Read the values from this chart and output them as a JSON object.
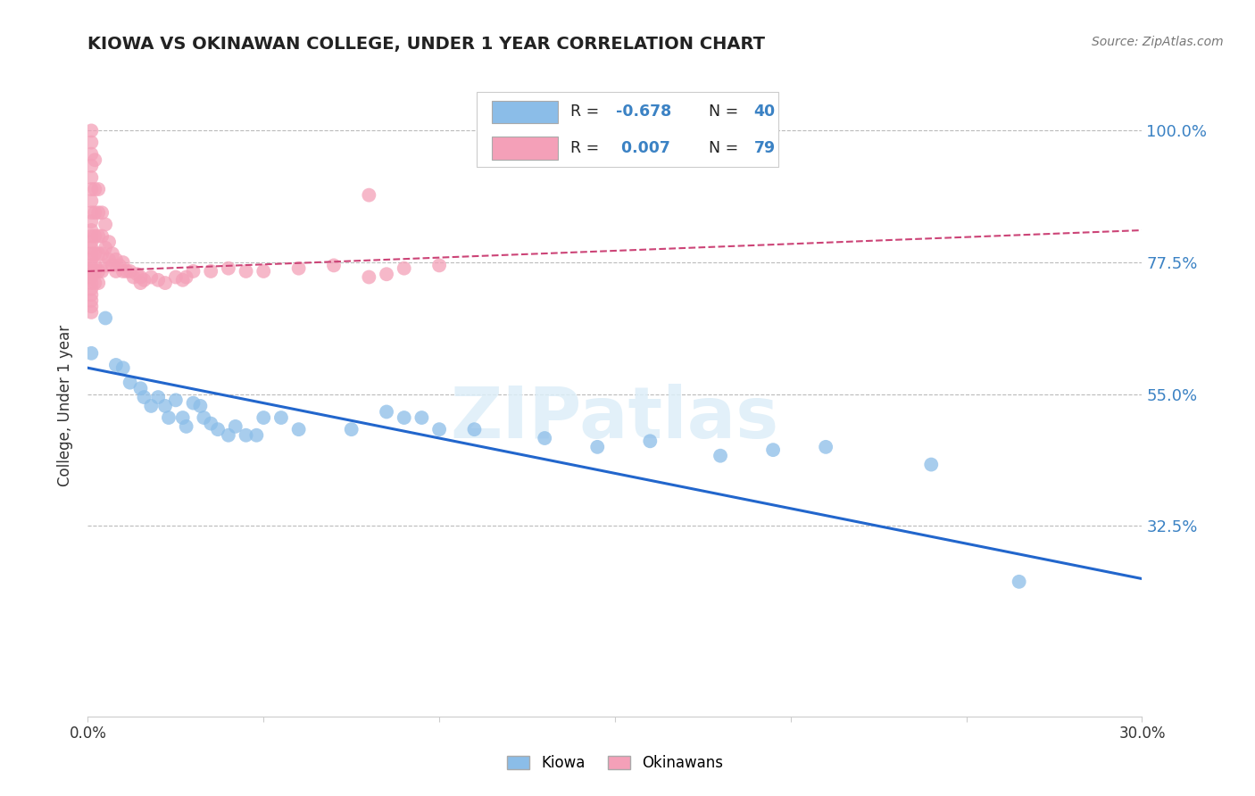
{
  "title": "KIOWA VS OKINAWAN COLLEGE, UNDER 1 YEAR CORRELATION CHART",
  "source": "Source: ZipAtlas.com",
  "ylabel": "College, Under 1 year",
  "xlim": [
    0.0,
    0.3
  ],
  "ylim": [
    0.0,
    1.05
  ],
  "yticks": [
    0.325,
    0.55,
    0.775,
    1.0
  ],
  "ytick_labels": [
    "32.5%",
    "55.0%",
    "77.5%",
    "100.0%"
  ],
  "blue_color": "#8BBDE8",
  "pink_color": "#F4A0B8",
  "blue_line_color": "#2266CC",
  "pink_line_color": "#CC4477",
  "watermark_color": "#DDEEFF",
  "blue_scatter": [
    [
      0.001,
      0.62
    ],
    [
      0.005,
      0.68
    ],
    [
      0.008,
      0.6
    ],
    [
      0.01,
      0.595
    ],
    [
      0.012,
      0.57
    ],
    [
      0.015,
      0.56
    ],
    [
      0.016,
      0.545
    ],
    [
      0.018,
      0.53
    ],
    [
      0.02,
      0.545
    ],
    [
      0.022,
      0.53
    ],
    [
      0.023,
      0.51
    ],
    [
      0.025,
      0.54
    ],
    [
      0.027,
      0.51
    ],
    [
      0.028,
      0.495
    ],
    [
      0.03,
      0.535
    ],
    [
      0.032,
      0.53
    ],
    [
      0.033,
      0.51
    ],
    [
      0.035,
      0.5
    ],
    [
      0.037,
      0.49
    ],
    [
      0.04,
      0.48
    ],
    [
      0.042,
      0.495
    ],
    [
      0.045,
      0.48
    ],
    [
      0.048,
      0.48
    ],
    [
      0.05,
      0.51
    ],
    [
      0.055,
      0.51
    ],
    [
      0.06,
      0.49
    ],
    [
      0.075,
      0.49
    ],
    [
      0.085,
      0.52
    ],
    [
      0.09,
      0.51
    ],
    [
      0.095,
      0.51
    ],
    [
      0.1,
      0.49
    ],
    [
      0.11,
      0.49
    ],
    [
      0.13,
      0.475
    ],
    [
      0.145,
      0.46
    ],
    [
      0.16,
      0.47
    ],
    [
      0.18,
      0.445
    ],
    [
      0.195,
      0.455
    ],
    [
      0.21,
      0.46
    ],
    [
      0.24,
      0.43
    ],
    [
      0.265,
      0.23
    ]
  ],
  "pink_scatter": [
    [
      0.001,
      1.0
    ],
    [
      0.001,
      0.98
    ],
    [
      0.001,
      0.96
    ],
    [
      0.001,
      0.94
    ],
    [
      0.001,
      0.92
    ],
    [
      0.001,
      0.9
    ],
    [
      0.001,
      0.88
    ],
    [
      0.001,
      0.86
    ],
    [
      0.001,
      0.845
    ],
    [
      0.001,
      0.83
    ],
    [
      0.001,
      0.82
    ],
    [
      0.001,
      0.81
    ],
    [
      0.001,
      0.8
    ],
    [
      0.001,
      0.79
    ],
    [
      0.001,
      0.78
    ],
    [
      0.001,
      0.77
    ],
    [
      0.001,
      0.76
    ],
    [
      0.001,
      0.755
    ],
    [
      0.001,
      0.75
    ],
    [
      0.001,
      0.74
    ],
    [
      0.001,
      0.73
    ],
    [
      0.001,
      0.72
    ],
    [
      0.001,
      0.71
    ],
    [
      0.001,
      0.7
    ],
    [
      0.001,
      0.69
    ],
    [
      0.002,
      0.95
    ],
    [
      0.002,
      0.9
    ],
    [
      0.002,
      0.86
    ],
    [
      0.002,
      0.82
    ],
    [
      0.002,
      0.79
    ],
    [
      0.002,
      0.77
    ],
    [
      0.002,
      0.76
    ],
    [
      0.002,
      0.74
    ],
    [
      0.003,
      0.9
    ],
    [
      0.003,
      0.86
    ],
    [
      0.003,
      0.82
    ],
    [
      0.003,
      0.79
    ],
    [
      0.003,
      0.76
    ],
    [
      0.003,
      0.74
    ],
    [
      0.004,
      0.86
    ],
    [
      0.004,
      0.82
    ],
    [
      0.004,
      0.79
    ],
    [
      0.004,
      0.76
    ],
    [
      0.005,
      0.84
    ],
    [
      0.005,
      0.8
    ],
    [
      0.005,
      0.77
    ],
    [
      0.006,
      0.81
    ],
    [
      0.006,
      0.78
    ],
    [
      0.007,
      0.79
    ],
    [
      0.007,
      0.77
    ],
    [
      0.008,
      0.78
    ],
    [
      0.008,
      0.76
    ],
    [
      0.009,
      0.77
    ],
    [
      0.01,
      0.775
    ],
    [
      0.01,
      0.76
    ],
    [
      0.011,
      0.76
    ],
    [
      0.012,
      0.76
    ],
    [
      0.013,
      0.75
    ],
    [
      0.014,
      0.755
    ],
    [
      0.015,
      0.75
    ],
    [
      0.015,
      0.74
    ],
    [
      0.016,
      0.745
    ],
    [
      0.018,
      0.75
    ],
    [
      0.02,
      0.745
    ],
    [
      0.022,
      0.74
    ],
    [
      0.025,
      0.75
    ],
    [
      0.027,
      0.745
    ],
    [
      0.028,
      0.75
    ],
    [
      0.03,
      0.76
    ],
    [
      0.035,
      0.76
    ],
    [
      0.04,
      0.765
    ],
    [
      0.045,
      0.76
    ],
    [
      0.05,
      0.76
    ],
    [
      0.06,
      0.765
    ],
    [
      0.07,
      0.77
    ],
    [
      0.08,
      0.75
    ],
    [
      0.085,
      0.755
    ],
    [
      0.09,
      0.765
    ],
    [
      0.1,
      0.77
    ],
    [
      0.08,
      0.89
    ]
  ],
  "blue_line": {
    "x0": 0.0,
    "y0": 0.595,
    "x1": 0.3,
    "y1": 0.235
  },
  "pink_line": {
    "x0": 0.0,
    "y0": 0.76,
    "x1": 0.3,
    "y1": 0.83
  }
}
